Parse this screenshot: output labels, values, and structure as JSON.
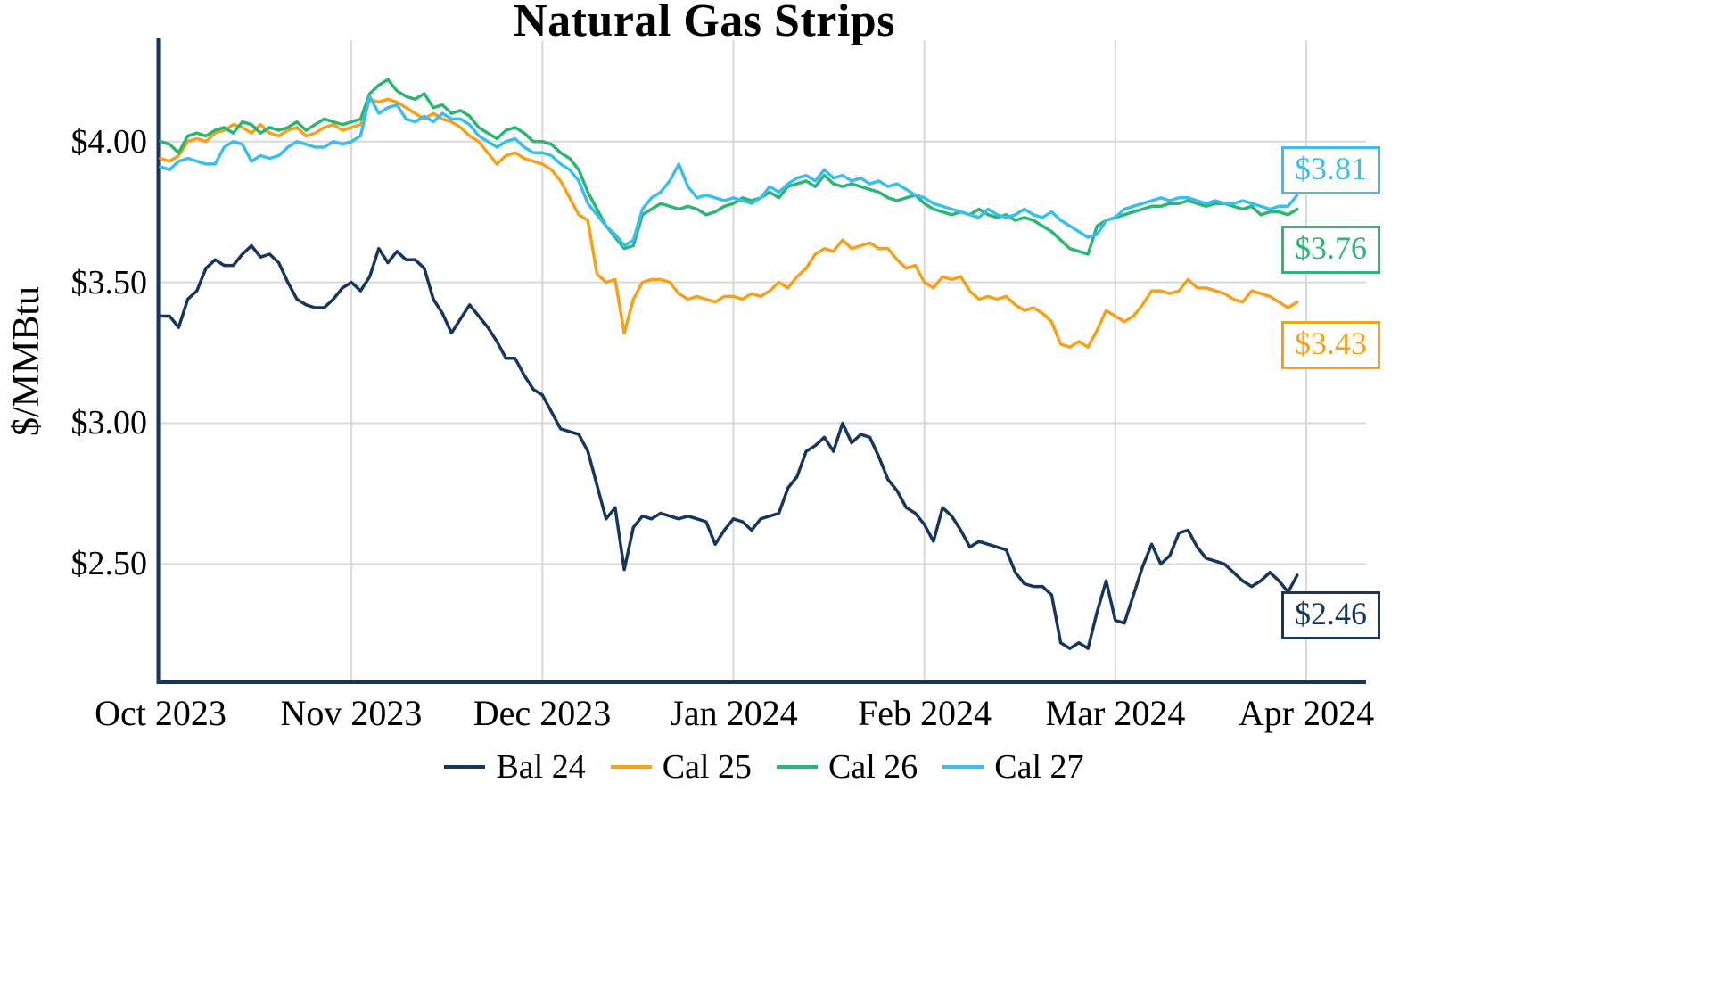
{
  "chart_data": {
    "type": "line",
    "title": "Natural Gas Strips",
    "ylabel": "$/MMBtu",
    "xlabel": "",
    "grid": true,
    "legend_position": "bottom",
    "axis_color": "#17365D",
    "grid_color": "#D9D9D9",
    "ylim": [
      2.08,
      4.36
    ],
    "x_months": 6,
    "points_per_month": 21,
    "x_tick_labels": [
      "Oct 2023",
      "Nov 2023",
      "Dec 2023",
      "Jan 2024",
      "Feb 2024",
      "Mar 2024",
      "Apr 2024"
    ],
    "y_ticks": [
      {
        "label": "$4.00",
        "value": 4.0
      },
      {
        "label": "$3.50",
        "value": 3.5
      },
      {
        "label": "$3.00",
        "value": 3.0
      },
      {
        "label": "$2.50",
        "value": 2.5
      }
    ],
    "series": [
      {
        "name": "Bal 24",
        "color": "#17365D",
        "end_label": "$2.46",
        "values": [
          3.38,
          3.38,
          3.34,
          3.44,
          3.47,
          3.55,
          3.58,
          3.56,
          3.56,
          3.6,
          3.63,
          3.59,
          3.6,
          3.57,
          3.5,
          3.44,
          3.42,
          3.41,
          3.41,
          3.44,
          3.48,
          3.5,
          3.47,
          3.52,
          3.62,
          3.57,
          3.61,
          3.58,
          3.58,
          3.55,
          3.44,
          3.39,
          3.32,
          3.37,
          3.42,
          3.38,
          3.34,
          3.29,
          3.23,
          3.23,
          3.17,
          3.12,
          3.1,
          3.04,
          2.98,
          2.97,
          2.96,
          2.9,
          2.78,
          2.66,
          2.7,
          2.48,
          2.63,
          2.67,
          2.66,
          2.68,
          2.67,
          2.66,
          2.67,
          2.66,
          2.65,
          2.57,
          2.62,
          2.66,
          2.65,
          2.62,
          2.66,
          2.67,
          2.68,
          2.77,
          2.81,
          2.9,
          2.92,
          2.95,
          2.9,
          3.0,
          2.93,
          2.96,
          2.95,
          2.88,
          2.8,
          2.76,
          2.7,
          2.68,
          2.64,
          2.58,
          2.7,
          2.67,
          2.62,
          2.56,
          2.58,
          2.57,
          2.56,
          2.55,
          2.47,
          2.43,
          2.42,
          2.42,
          2.39,
          2.22,
          2.2,
          2.22,
          2.2,
          2.33,
          2.44,
          2.3,
          2.29,
          2.39,
          2.49,
          2.57,
          2.5,
          2.53,
          2.61,
          2.62,
          2.56,
          2.52,
          2.51,
          2.5,
          2.47,
          2.44,
          2.42,
          2.44,
          2.47,
          2.44,
          2.4,
          2.46
        ]
      },
      {
        "name": "Cal 25",
        "color": "#F7A11A",
        "end_label": "$3.43",
        "values": [
          3.94,
          3.93,
          3.95,
          4.0,
          4.01,
          4.0,
          4.03,
          4.04,
          4.06,
          4.05,
          4.03,
          4.06,
          4.03,
          4.02,
          4.04,
          4.05,
          4.02,
          4.03,
          4.05,
          4.06,
          4.04,
          4.05,
          4.06,
          4.15,
          4.14,
          4.15,
          4.14,
          4.12,
          4.1,
          4.08,
          4.1,
          4.08,
          4.07,
          4.05,
          4.02,
          4.0,
          3.96,
          3.92,
          3.95,
          3.96,
          3.94,
          3.93,
          3.92,
          3.9,
          3.86,
          3.8,
          3.74,
          3.72,
          3.53,
          3.5,
          3.51,
          3.32,
          3.44,
          3.5,
          3.51,
          3.51,
          3.5,
          3.46,
          3.44,
          3.45,
          3.44,
          3.43,
          3.45,
          3.45,
          3.44,
          3.46,
          3.45,
          3.47,
          3.5,
          3.48,
          3.52,
          3.55,
          3.6,
          3.62,
          3.61,
          3.65,
          3.62,
          3.63,
          3.64,
          3.62,
          3.62,
          3.58,
          3.55,
          3.56,
          3.5,
          3.48,
          3.52,
          3.51,
          3.52,
          3.47,
          3.44,
          3.45,
          3.44,
          3.45,
          3.42,
          3.4,
          3.41,
          3.39,
          3.36,
          3.28,
          3.27,
          3.29,
          3.27,
          3.33,
          3.4,
          3.38,
          3.36,
          3.38,
          3.42,
          3.47,
          3.47,
          3.46,
          3.47,
          3.51,
          3.48,
          3.48,
          3.47,
          3.46,
          3.44,
          3.43,
          3.47,
          3.46,
          3.45,
          3.43,
          3.41,
          3.43
        ]
      },
      {
        "name": "Cal 26",
        "color": "#2BB673",
        "end_label": "$3.76",
        "values": [
          4.0,
          3.99,
          3.96,
          4.02,
          4.03,
          4.02,
          4.04,
          4.05,
          4.03,
          4.07,
          4.06,
          4.03,
          4.05,
          4.04,
          4.05,
          4.07,
          4.04,
          4.06,
          4.08,
          4.07,
          4.06,
          4.07,
          4.08,
          4.17,
          4.2,
          4.22,
          4.18,
          4.16,
          4.15,
          4.17,
          4.12,
          4.13,
          4.1,
          4.11,
          4.09,
          4.05,
          4.03,
          4.01,
          4.04,
          4.05,
          4.03,
          4.0,
          4.0,
          3.99,
          3.96,
          3.94,
          3.9,
          3.82,
          3.76,
          3.7,
          3.66,
          3.62,
          3.63,
          3.74,
          3.76,
          3.78,
          3.77,
          3.76,
          3.77,
          3.76,
          3.74,
          3.75,
          3.77,
          3.78,
          3.8,
          3.79,
          3.8,
          3.82,
          3.8,
          3.84,
          3.85,
          3.86,
          3.84,
          3.88,
          3.85,
          3.84,
          3.85,
          3.84,
          3.83,
          3.82,
          3.8,
          3.79,
          3.8,
          3.81,
          3.78,
          3.76,
          3.75,
          3.74,
          3.75,
          3.74,
          3.76,
          3.74,
          3.73,
          3.74,
          3.72,
          3.73,
          3.72,
          3.7,
          3.68,
          3.65,
          3.62,
          3.61,
          3.6,
          3.7,
          3.72,
          3.73,
          3.74,
          3.75,
          3.76,
          3.77,
          3.77,
          3.78,
          3.78,
          3.79,
          3.78,
          3.77,
          3.78,
          3.78,
          3.77,
          3.76,
          3.77,
          3.74,
          3.75,
          3.75,
          3.74,
          3.76
        ]
      },
      {
        "name": "Cal 27",
        "color": "#3ABEEE",
        "end_label": "$3.81",
        "values": [
          3.91,
          3.9,
          3.93,
          3.94,
          3.93,
          3.92,
          3.92,
          3.98,
          4.0,
          3.99,
          3.93,
          3.95,
          3.94,
          3.95,
          3.98,
          4.0,
          3.99,
          3.98,
          3.98,
          4.0,
          3.99,
          4.0,
          4.02,
          4.16,
          4.1,
          4.12,
          4.13,
          4.08,
          4.07,
          4.09,
          4.07,
          4.1,
          4.08,
          4.08,
          4.06,
          4.02,
          4.0,
          3.98,
          4.0,
          4.01,
          3.98,
          3.96,
          3.96,
          3.95,
          3.92,
          3.9,
          3.86,
          3.78,
          3.74,
          3.7,
          3.67,
          3.63,
          3.65,
          3.76,
          3.8,
          3.82,
          3.86,
          3.92,
          3.84,
          3.8,
          3.81,
          3.8,
          3.79,
          3.8,
          3.79,
          3.78,
          3.8,
          3.84,
          3.82,
          3.85,
          3.87,
          3.88,
          3.86,
          3.9,
          3.87,
          3.88,
          3.86,
          3.87,
          3.85,
          3.86,
          3.84,
          3.85,
          3.83,
          3.81,
          3.8,
          3.78,
          3.77,
          3.76,
          3.75,
          3.74,
          3.73,
          3.76,
          3.74,
          3.73,
          3.74,
          3.76,
          3.74,
          3.73,
          3.75,
          3.72,
          3.7,
          3.68,
          3.66,
          3.67,
          3.72,
          3.73,
          3.76,
          3.77,
          3.78,
          3.79,
          3.8,
          3.79,
          3.8,
          3.8,
          3.79,
          3.78,
          3.79,
          3.78,
          3.78,
          3.79,
          3.78,
          3.77,
          3.76,
          3.77,
          3.77,
          3.81
        ]
      }
    ]
  }
}
